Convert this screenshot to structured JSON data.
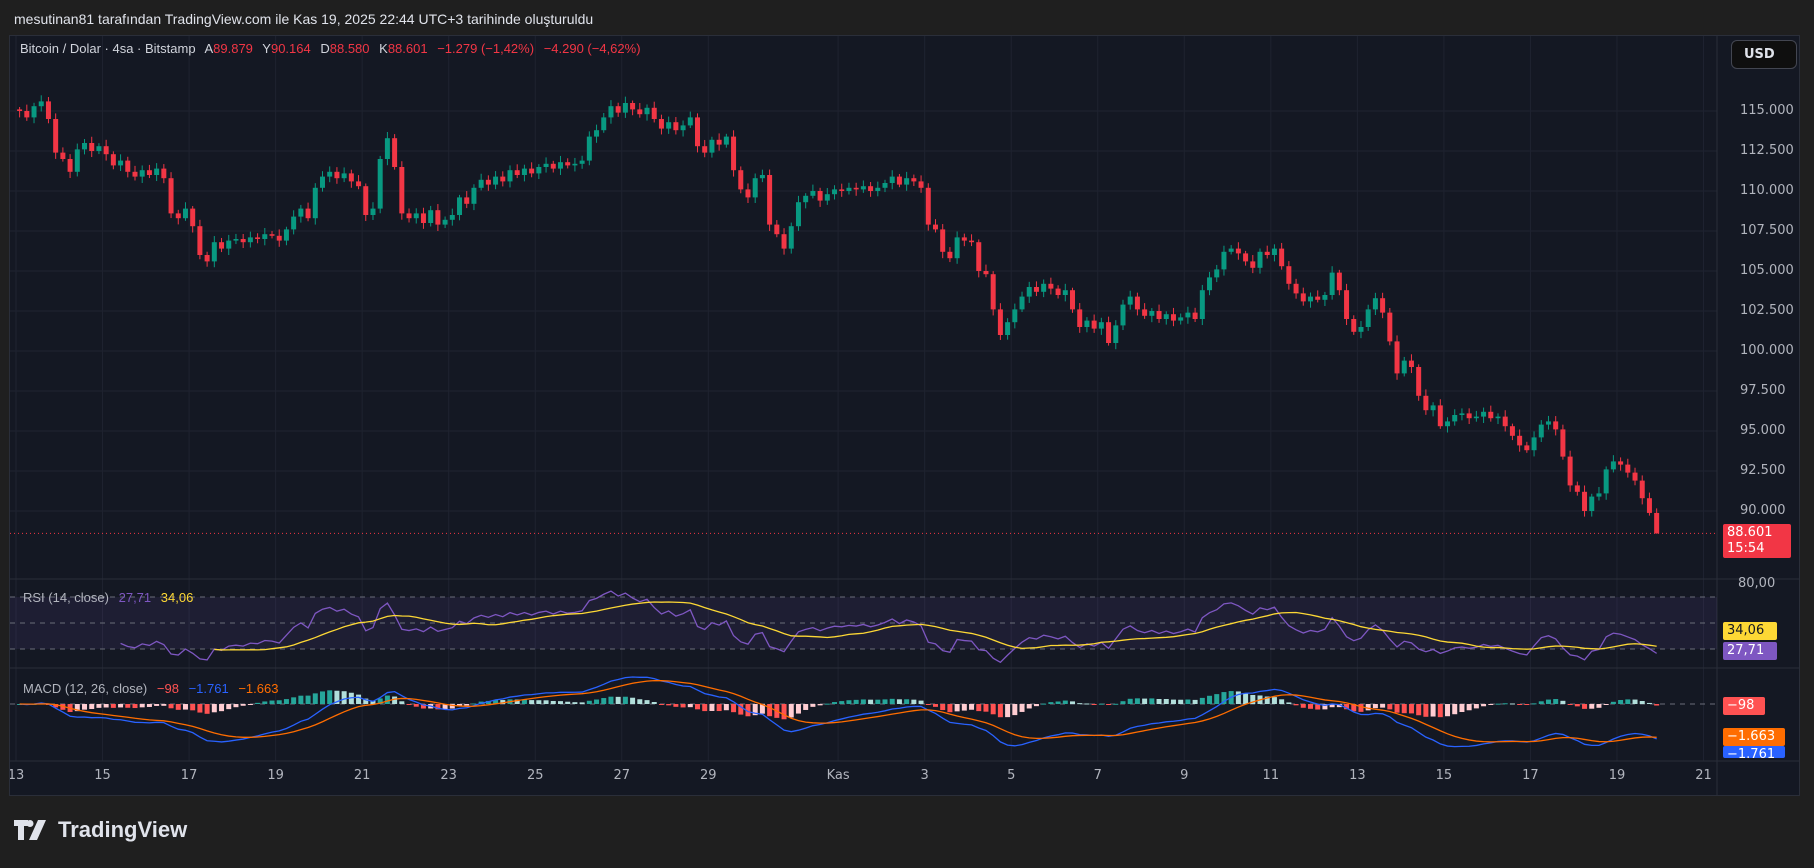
{
  "caption": "mesutinan81 tarafından TradingView.com ile Kas 19, 2025 22:44 UTC+3 tarihinde oluşturuldu",
  "symbol": {
    "name": "Bitcoin / Dolar · 4sa · Bitstamp",
    "o_label": "A",
    "o": "89.879",
    "h_label": "Y",
    "h": "90.164",
    "l_label": "D",
    "l": "88.580",
    "c_label": "K",
    "c": "88.601",
    "change": "−1.279 (−1,42%)",
    "change2": "−4.290 (−4,62%)"
  },
  "currency_button": "USD",
  "price_axis": [
    "115.000",
    "112.500",
    "110.000",
    "107.500",
    "105.000",
    "102.500",
    "100.000",
    "97.500",
    "95.000",
    "92.500",
    "90.000"
  ],
  "last_price": {
    "value": "88.601",
    "countdown": "15:54"
  },
  "rsi": {
    "label": "RSI (14, close)",
    "value": "27,71",
    "ma": "34,06",
    "axis_top": "80,00",
    "levels": [
      70,
      50,
      30
    ]
  },
  "macd": {
    "label": "MACD (12, 26, close)",
    "hist": "−98",
    "macd": "−1.761",
    "signal": "−1.663"
  },
  "time_axis": [
    {
      "label": "13",
      "day": 0
    },
    {
      "label": "15",
      "day": 2
    },
    {
      "label": "17",
      "day": 4
    },
    {
      "label": "19",
      "day": 6
    },
    {
      "label": "21",
      "day": 8
    },
    {
      "label": "23",
      "day": 10
    },
    {
      "label": "25",
      "day": 12
    },
    {
      "label": "27",
      "day": 14
    },
    {
      "label": "29",
      "day": 16
    },
    {
      "label": "Kas",
      "day": 19
    },
    {
      "label": "3",
      "day": 21
    },
    {
      "label": "5",
      "day": 23
    },
    {
      "label": "7",
      "day": 25
    },
    {
      "label": "9",
      "day": 27
    },
    {
      "label": "11",
      "day": 29
    },
    {
      "label": "13",
      "day": 31
    },
    {
      "label": "15",
      "day": 33
    },
    {
      "label": "17",
      "day": 35
    },
    {
      "label": "19",
      "day": 37
    },
    {
      "label": "21",
      "day": 39
    }
  ],
  "logo": "TradingView",
  "colors": {
    "up": "#089981",
    "down": "#f23645",
    "rsi": "#7e57c2",
    "rsi_ma": "#fdd835",
    "macd": "#2962ff",
    "signal": "#ff6d00",
    "hist_up": "#26a69a",
    "hist_up_weak": "#b2dfdb",
    "hist_dn": "#ff5252",
    "hist_dn_weak": "#ffcdd2"
  },
  "chart_data": {
    "type": "candlestick",
    "interval": "4h",
    "start": "Oct 13 00:00",
    "unit": "thousand USD",
    "open_first": 115.1,
    "closes": [
      115.0,
      114.6,
      115.3,
      115.6,
      114.5,
      112.4,
      112.0,
      111.2,
      112.6,
      113.0,
      112.5,
      112.8,
      112.3,
      111.6,
      111.9,
      111.2,
      110.9,
      111.3,
      111.0,
      111.4,
      110.8,
      108.6,
      108.3,
      108.9,
      107.8,
      106.0,
      105.6,
      106.8,
      106.4,
      106.9,
      107.0,
      106.8,
      107.1,
      107.0,
      107.3,
      107.2,
      106.9,
      107.6,
      108.4,
      108.9,
      108.3,
      110.2,
      110.9,
      111.2,
      110.8,
      111.1,
      110.6,
      110.3,
      108.5,
      108.9,
      112.0,
      113.3,
      111.5,
      108.6,
      108.3,
      108.6,
      108.0,
      108.8,
      107.9,
      108.2,
      108.5,
      109.6,
      109.2,
      110.2,
      110.7,
      110.4,
      110.9,
      110.6,
      111.3,
      111.0,
      111.4,
      111.1,
      111.5,
      111.7,
      111.4,
      111.8,
      111.6,
      111.7,
      111.9,
      113.4,
      113.8,
      114.6,
      115.3,
      114.9,
      115.5,
      115.1,
      114.8,
      115.2,
      114.5,
      113.9,
      114.3,
      113.8,
      114.1,
      114.6,
      112.8,
      112.4,
      113.2,
      112.9,
      113.4,
      111.3,
      110.1,
      109.6,
      110.8,
      111.0,
      107.9,
      107.3,
      106.4,
      107.8,
      109.3,
      109.7,
      110.0,
      109.4,
      109.8,
      110.1,
      110.0,
      110.2,
      110.1,
      110.3,
      110.0,
      110.2,
      110.5,
      110.9,
      110.4,
      110.8,
      110.6,
      110.2,
      107.9,
      107.6,
      106.2,
      105.8,
      107.1,
      106.9,
      106.8,
      105.0,
      104.8,
      102.6,
      101.0,
      101.8,
      102.6,
      103.4,
      104.0,
      103.7,
      104.2,
      103.9,
      103.5,
      103.8,
      102.6,
      101.5,
      101.9,
      101.4,
      101.8,
      100.5,
      101.6,
      102.9,
      103.4,
      102.6,
      102.2,
      102.5,
      102.0,
      102.3,
      101.9,
      102.1,
      102.4,
      102.0,
      103.8,
      104.6,
      105.1,
      106.2,
      106.4,
      106.1,
      105.6,
      105.2,
      106.2,
      106.0,
      106.4,
      105.3,
      104.2,
      103.6,
      103.1,
      103.4,
      103.2,
      103.5,
      104.9,
      103.8,
      102.0,
      101.2,
      101.5,
      102.6,
      103.3,
      102.4,
      100.6,
      98.6,
      99.4,
      99.0,
      97.2,
      96.3,
      96.6,
      95.3,
      95.6,
      96.0,
      96.1,
      95.8,
      95.9,
      96.2,
      95.8,
      95.9,
      95.3,
      94.7,
      94.1,
      93.8,
      94.6,
      95.4,
      95.6,
      95.1,
      93.4,
      91.6,
      91.2,
      90.0,
      90.9,
      91.1,
      92.6,
      93.1,
      92.9,
      92.4,
      91.9,
      90.8,
      89.879,
      88.601
    ],
    "last_candle": {
      "open": 89.879,
      "high": 90.164,
      "low": 88.58,
      "close": 88.601
    },
    "ylim": [
      87.5,
      117.5
    ],
    "grid": true
  }
}
